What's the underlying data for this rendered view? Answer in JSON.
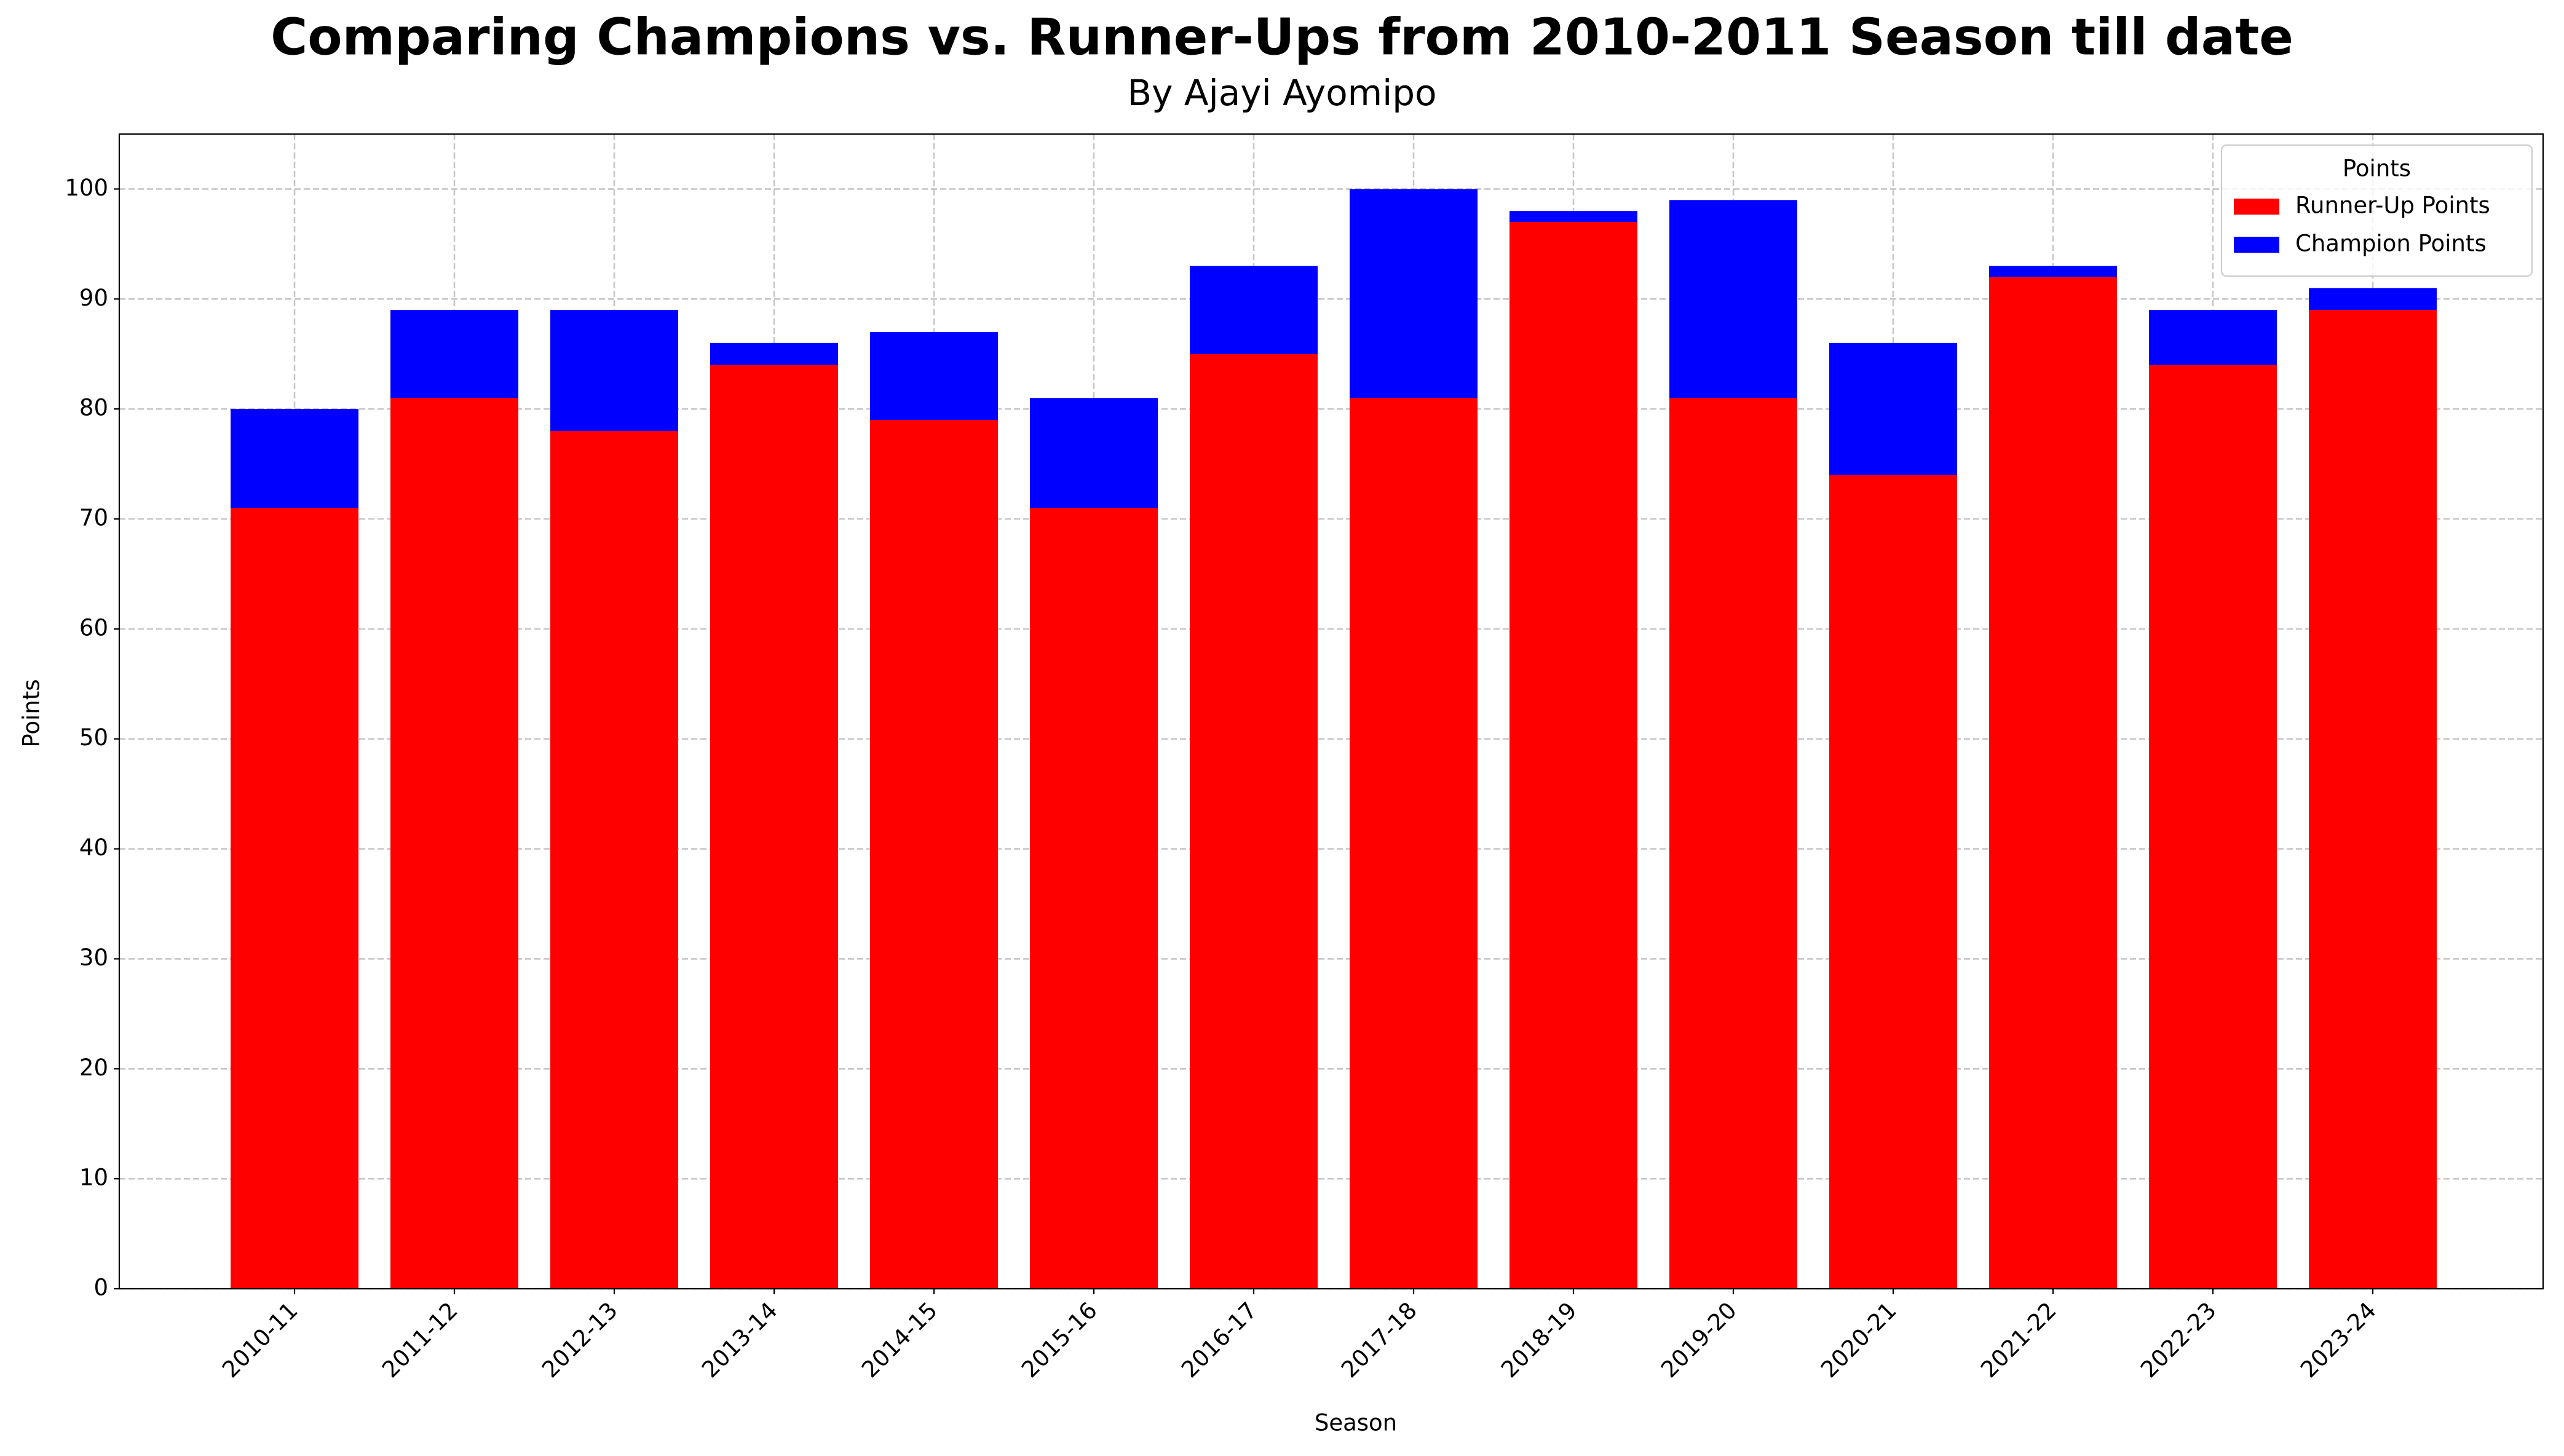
{
  "chart_data": {
    "type": "bar",
    "title": "Comparing Champions vs. Runner-Ups from 2010-2011 Season till date",
    "subtitle": "By Ajayi Ayomipo",
    "x_label": "Season",
    "y_label": "Points",
    "categories": [
      "2010-11",
      "2011-12",
      "2012-13",
      "2013-14",
      "2014-15",
      "2015-16",
      "2016-17",
      "2017-18",
      "2018-19",
      "2019-20",
      "2020-21",
      "2021-22",
      "2022-23",
      "2023-24"
    ],
    "series": [
      {
        "name": "Runner-Up Points",
        "color": "#ff0000",
        "values": [
          71,
          81,
          78,
          84,
          79,
          71,
          85,
          81,
          97,
          81,
          74,
          92,
          84,
          89
        ]
      },
      {
        "name": "Champion Points",
        "color": "#0000ff",
        "values": [
          80,
          89,
          89,
          86,
          87,
          81,
          93,
          100,
          98,
          99,
          86,
          93,
          89,
          91
        ]
      }
    ],
    "ylim": [
      0,
      105
    ],
    "yticks": [
      0,
      10,
      20,
      30,
      40,
      50,
      60,
      70,
      80,
      90,
      100
    ],
    "grid": true,
    "legend": "upper right",
    "legend_title": "Points"
  }
}
